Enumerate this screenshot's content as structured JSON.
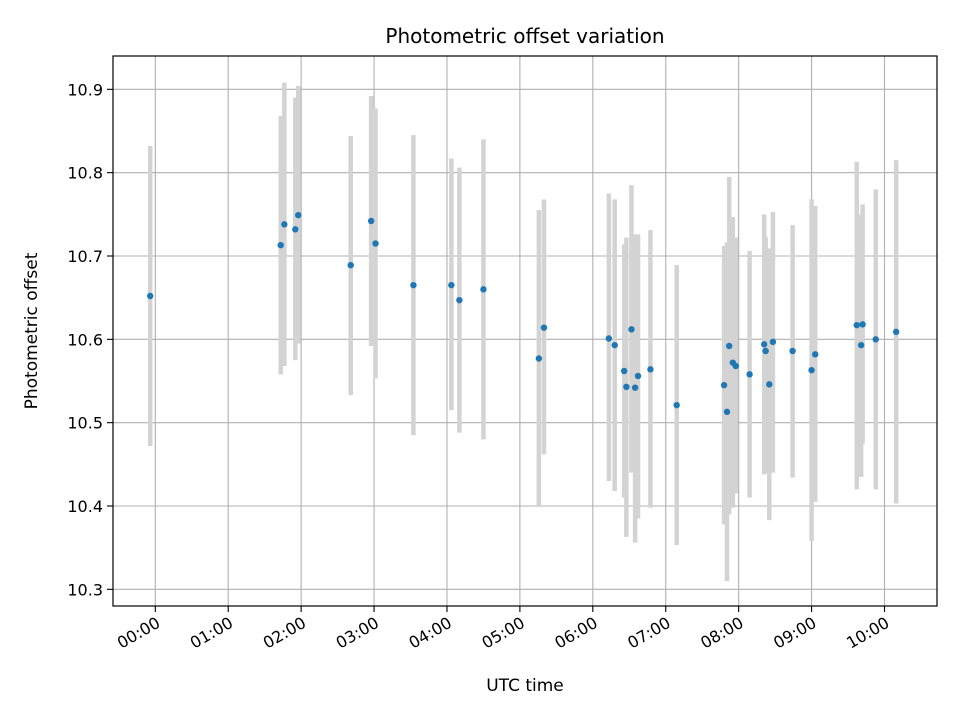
{
  "chart_data": {
    "type": "scatter",
    "title": "Photometric offset variation",
    "xlabel": "UTC time",
    "ylabel": "Photometric offset",
    "x_ticks": [
      "00:00",
      "01:00",
      "02:00",
      "03:00",
      "04:00",
      "05:00",
      "06:00",
      "07:00",
      "08:00",
      "09:00",
      "10:00"
    ],
    "y_ticks": [
      "10.3",
      "10.4",
      "10.5",
      "10.6",
      "10.7",
      "10.8",
      "10.9"
    ],
    "x_unit": "hours UTC",
    "xlim": [
      -0.58,
      10.72
    ],
    "ylim": [
      10.28,
      10.94
    ],
    "grid": true,
    "colors": {
      "marker": "#1f77b4",
      "errorbar": "#d3d3d3",
      "grid": "#b0b0b0",
      "frame": "#000000"
    },
    "points": [
      {
        "t": "23:56",
        "x": -0.07,
        "y": 10.652,
        "lo": 10.472,
        "hi": 10.832
      },
      {
        "t": "01:43",
        "x": 1.72,
        "y": 10.713,
        "lo": 10.558,
        "hi": 10.868
      },
      {
        "t": "01:46",
        "x": 1.77,
        "y": 10.738,
        "lo": 10.568,
        "hi": 10.908
      },
      {
        "t": "01:55",
        "x": 1.92,
        "y": 10.732,
        "lo": 10.575,
        "hi": 10.89
      },
      {
        "t": "01:58",
        "x": 1.96,
        "y": 10.749,
        "lo": 10.595,
        "hi": 10.904
      },
      {
        "t": "02:41",
        "x": 2.68,
        "y": 10.689,
        "lo": 10.533,
        "hi": 10.844
      },
      {
        "t": "02:57",
        "x": 2.96,
        "y": 10.742,
        "lo": 10.592,
        "hi": 10.892
      },
      {
        "t": "03:01",
        "x": 3.02,
        "y": 10.715,
        "lo": 10.553,
        "hi": 10.877
      },
      {
        "t": "03:32",
        "x": 3.54,
        "y": 10.665,
        "lo": 10.485,
        "hi": 10.845
      },
      {
        "t": "04:04",
        "x": 4.06,
        "y": 10.665,
        "lo": 10.515,
        "hi": 10.817
      },
      {
        "t": "04:10",
        "x": 4.17,
        "y": 10.647,
        "lo": 10.488,
        "hi": 10.806
      },
      {
        "t": "04:30",
        "x": 4.5,
        "y": 10.66,
        "lo": 10.48,
        "hi": 10.84
      },
      {
        "t": "05:15",
        "x": 5.26,
        "y": 10.577,
        "lo": 10.4,
        "hi": 10.755
      },
      {
        "t": "05:20",
        "x": 5.33,
        "y": 10.614,
        "lo": 10.462,
        "hi": 10.768
      },
      {
        "t": "06:13",
        "x": 6.22,
        "y": 10.601,
        "lo": 10.43,
        "hi": 10.775
      },
      {
        "t": "06:18",
        "x": 6.3,
        "y": 10.593,
        "lo": 10.418,
        "hi": 10.768
      },
      {
        "t": "06:26",
        "x": 6.43,
        "y": 10.562,
        "lo": 10.41,
        "hi": 10.714
      },
      {
        "t": "06:28",
        "x": 6.46,
        "y": 10.543,
        "lo": 10.363,
        "hi": 10.722
      },
      {
        "t": "06:32",
        "x": 6.53,
        "y": 10.612,
        "lo": 10.44,
        "hi": 10.785
      },
      {
        "t": "06:35",
        "x": 6.58,
        "y": 10.542,
        "lo": 10.356,
        "hi": 10.726
      },
      {
        "t": "06:37",
        "x": 6.62,
        "y": 10.556,
        "lo": 10.385,
        "hi": 10.726
      },
      {
        "t": "06:47",
        "x": 6.79,
        "y": 10.564,
        "lo": 10.398,
        "hi": 10.731
      },
      {
        "t": "07:09",
        "x": 7.15,
        "y": 10.521,
        "lo": 10.353,
        "hi": 10.689
      },
      {
        "t": "07:48",
        "x": 7.8,
        "y": 10.545,
        "lo": 10.378,
        "hi": 10.712
      },
      {
        "t": "07:50",
        "x": 7.84,
        "y": 10.513,
        "lo": 10.31,
        "hi": 10.716
      },
      {
        "t": "07:52",
        "x": 7.87,
        "y": 10.592,
        "lo": 10.39,
        "hi": 10.795
      },
      {
        "t": "07:55",
        "x": 7.92,
        "y": 10.572,
        "lo": 10.398,
        "hi": 10.747
      },
      {
        "t": "07:58",
        "x": 7.96,
        "y": 10.568,
        "lo": 10.415,
        "hi": 10.722
      },
      {
        "t": "08:09",
        "x": 8.15,
        "y": 10.558,
        "lo": 10.41,
        "hi": 10.706
      },
      {
        "t": "08:21",
        "x": 8.35,
        "y": 10.594,
        "lo": 10.438,
        "hi": 10.75
      },
      {
        "t": "08:22",
        "x": 8.37,
        "y": 10.586,
        "lo": 10.44,
        "hi": 10.723
      },
      {
        "t": "08:25",
        "x": 8.42,
        "y": 10.546,
        "lo": 10.383,
        "hi": 10.709
      },
      {
        "t": "08:28",
        "x": 8.47,
        "y": 10.597,
        "lo": 10.44,
        "hi": 10.753
      },
      {
        "t": "08:44",
        "x": 8.74,
        "y": 10.586,
        "lo": 10.434,
        "hi": 10.737
      },
      {
        "t": "09:00",
        "x": 9.0,
        "y": 10.563,
        "lo": 10.358,
        "hi": 10.768
      },
      {
        "t": "09:03",
        "x": 9.05,
        "y": 10.582,
        "lo": 10.405,
        "hi": 10.76
      },
      {
        "t": "09:37",
        "x": 9.62,
        "y": 10.617,
        "lo": 10.42,
        "hi": 10.813
      },
      {
        "t": "09:41",
        "x": 9.68,
        "y": 10.593,
        "lo": 10.435,
        "hi": 10.75
      },
      {
        "t": "09:42",
        "x": 9.7,
        "y": 10.618,
        "lo": 10.475,
        "hi": 10.762
      },
      {
        "t": "09:53",
        "x": 9.88,
        "y": 10.6,
        "lo": 10.42,
        "hi": 10.78
      },
      {
        "t": "10:10",
        "x": 10.16,
        "y": 10.609,
        "lo": 10.403,
        "hi": 10.815
      }
    ]
  }
}
